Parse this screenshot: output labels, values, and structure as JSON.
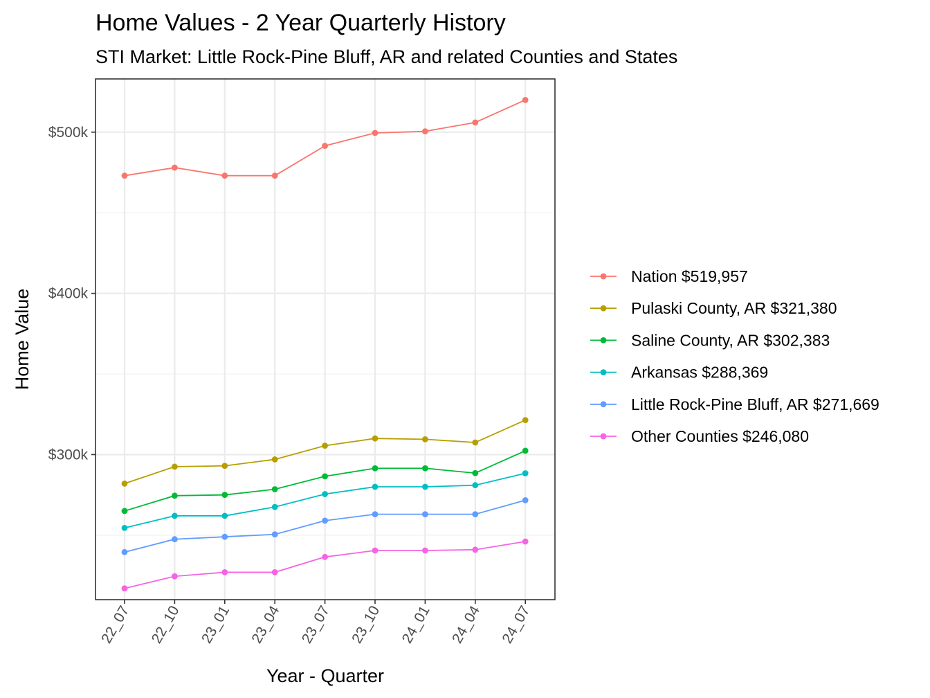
{
  "chart_data": {
    "type": "line",
    "title": "Home Values - 2 Year Quarterly History",
    "subtitle": "STI Market: Little Rock-Pine Bluff, AR and related Counties and States",
    "xlabel": "Year - Quarter",
    "ylabel": "Home Value",
    "categories": [
      "22_07",
      "22_10",
      "23_01",
      "23_04",
      "23_07",
      "23_10",
      "24_01",
      "24_04",
      "24_07"
    ],
    "ylim": [
      210000,
      533000
    ],
    "yticks": [
      {
        "value": 300000,
        "label": "$300k"
      },
      {
        "value": 400000,
        "label": "$400k"
      },
      {
        "value": 500000,
        "label": "$500k"
      }
    ],
    "grid": true,
    "legend_position": "right",
    "series": [
      {
        "name": "Nation",
        "legend_label": "Nation $519,957",
        "color": "#F8766D",
        "values": [
          473000,
          478000,
          473000,
          473000,
          491500,
          499500,
          500500,
          506000,
          519957
        ]
      },
      {
        "name": "Pulaski County, AR",
        "legend_label": "Pulaski County, AR $321,380",
        "color": "#B79F00",
        "values": [
          282000,
          292500,
          293000,
          297000,
          305500,
          310000,
          309500,
          307500,
          321380
        ]
      },
      {
        "name": "Saline County, AR",
        "legend_label": "Saline County, AR $302,383",
        "color": "#00BA38",
        "values": [
          265000,
          274500,
          275000,
          278500,
          286500,
          291500,
          291500,
          288500,
          302383
        ]
      },
      {
        "name": "Arkansas",
        "legend_label": "Arkansas $288,369",
        "color": "#00BFC4",
        "values": [
          254500,
          262000,
          262000,
          267500,
          275500,
          280000,
          280000,
          281000,
          288369
        ]
      },
      {
        "name": "Little Rock-Pine Bluff, AR",
        "legend_label": "Little Rock-Pine Bluff, AR $271,669",
        "color": "#619CFF",
        "values": [
          239500,
          247500,
          249000,
          250500,
          259000,
          263000,
          263000,
          263000,
          271669
        ]
      },
      {
        "name": "Other Counties",
        "legend_label": "Other Counties $246,080",
        "color": "#F564E3",
        "values": [
          217000,
          224500,
          227000,
          227000,
          236500,
          240500,
          240500,
          241000,
          246080
        ]
      }
    ]
  }
}
